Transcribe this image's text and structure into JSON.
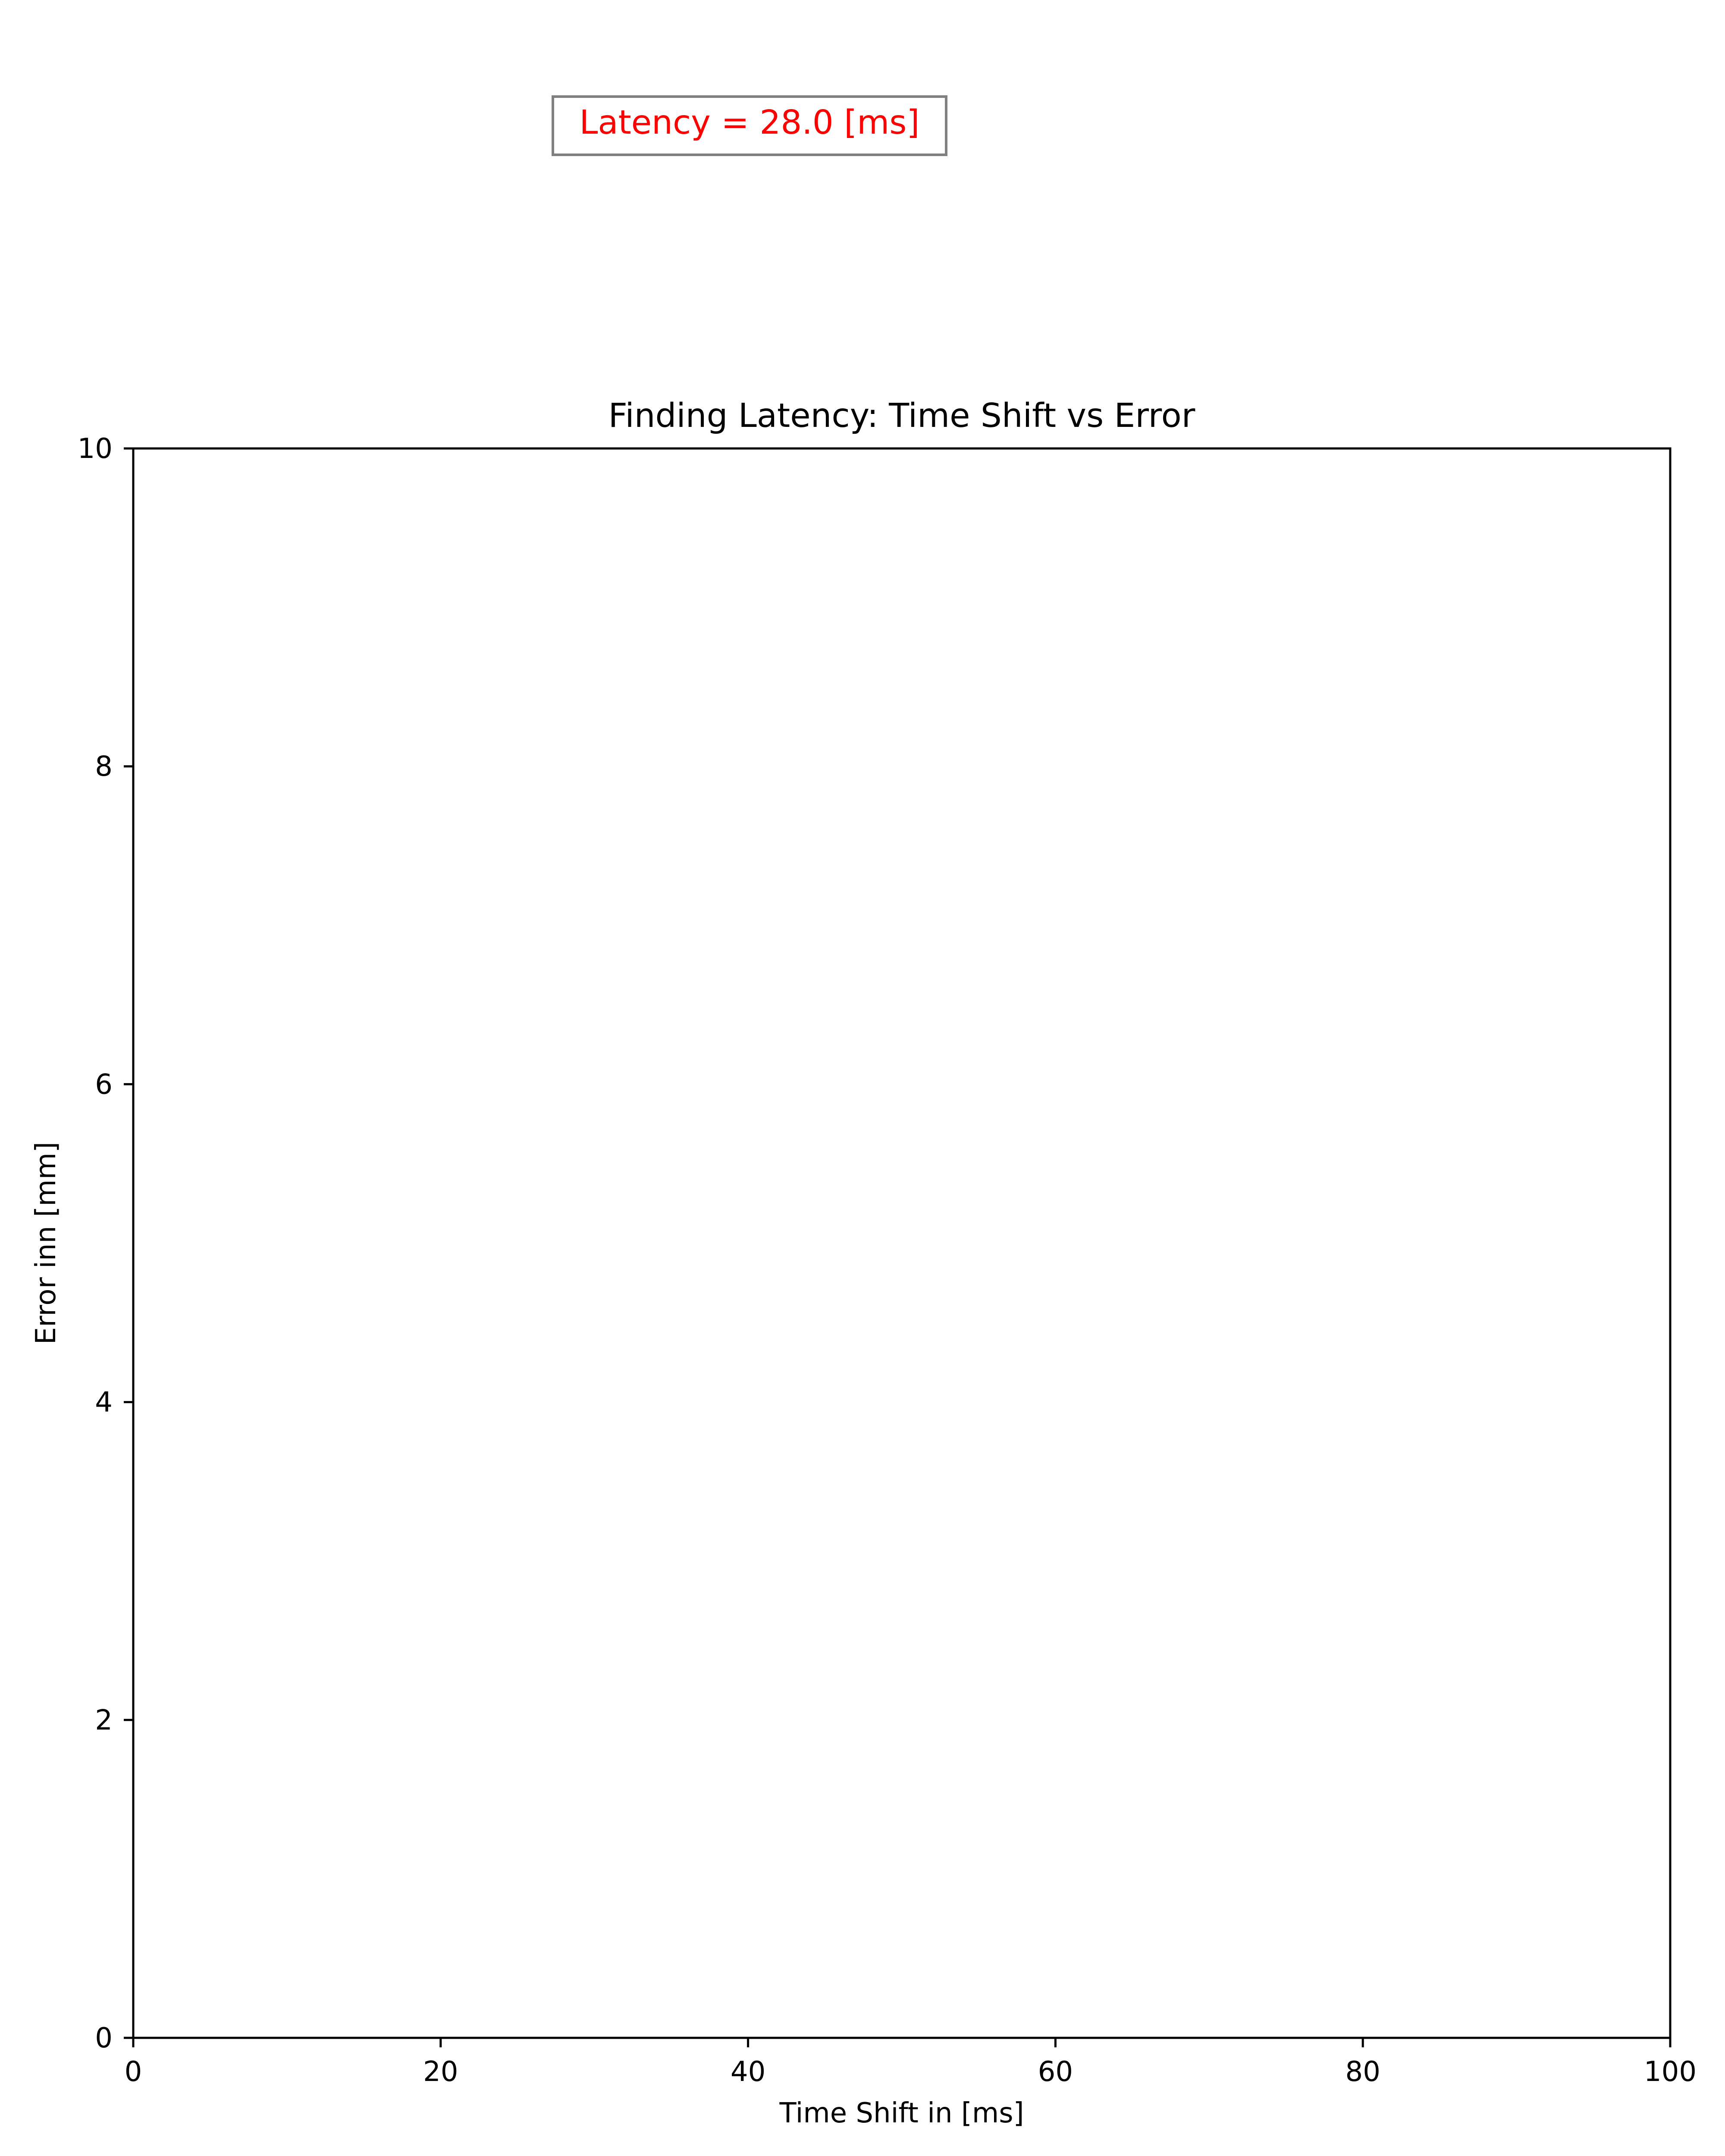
{
  "chart_data": {
    "type": "line",
    "title": "Finding Latency: Time Shift vs Error",
    "xlabel": "Time Shift in [ms]",
    "ylabel": "Error inn [mm]",
    "xlim": [
      0,
      100
    ],
    "ylim": [
      0,
      10
    ],
    "xticks": [
      0,
      20,
      40,
      60,
      80,
      100
    ],
    "yticks": [
      0,
      2,
      4,
      6,
      8,
      10
    ],
    "series": [],
    "grid": false,
    "annotation": {
      "text": "Latency = 28.0 [ms]",
      "color": "#ff0000",
      "border_color": "#808080",
      "placement": "above plot, center-left"
    }
  }
}
